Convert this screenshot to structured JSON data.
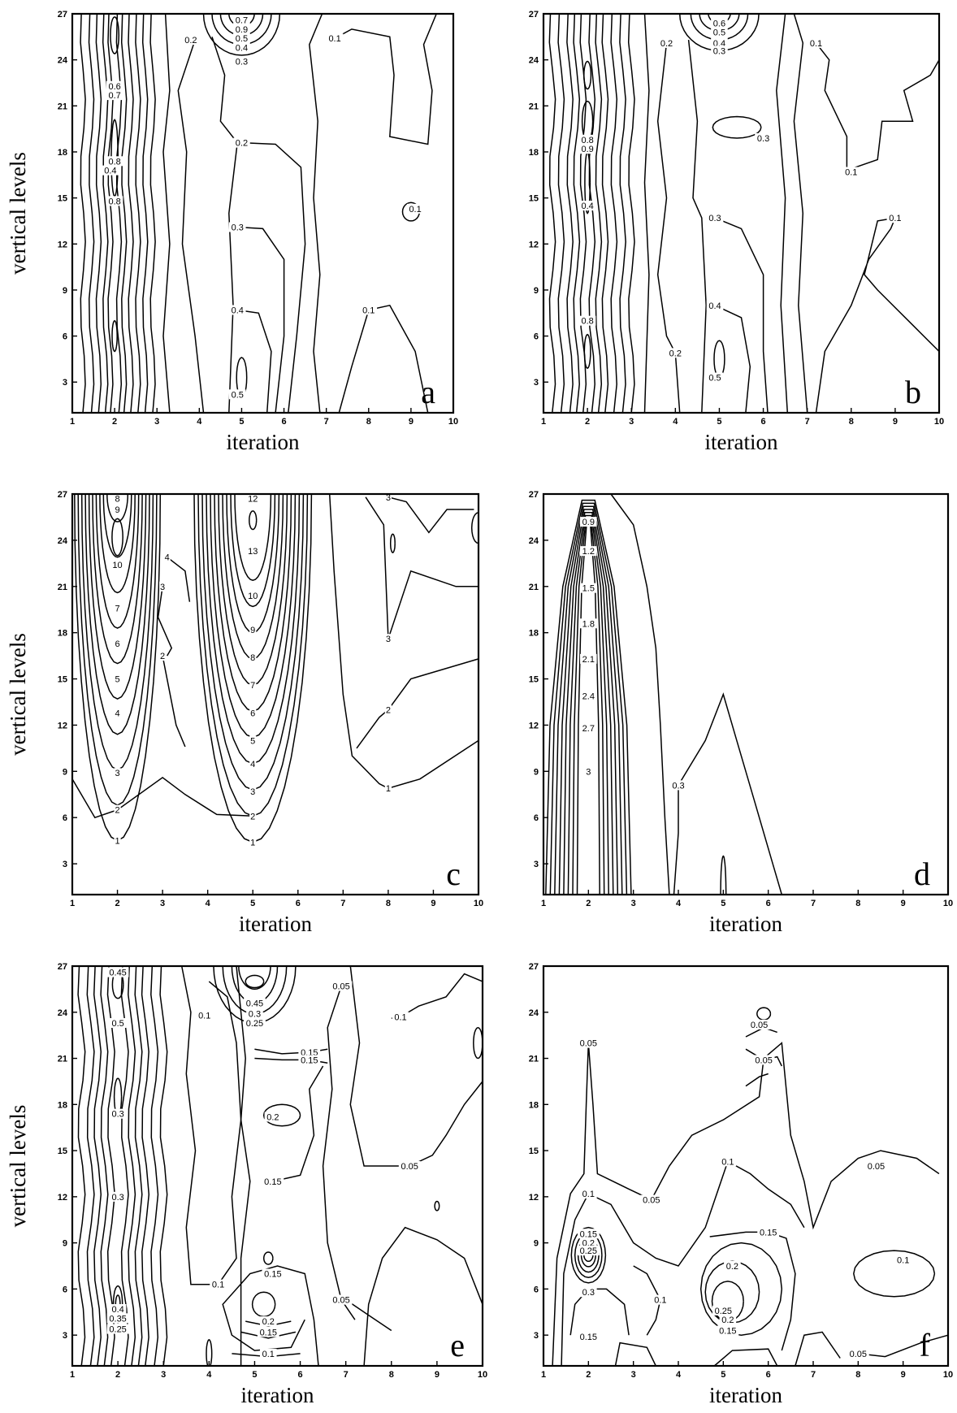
{
  "chart_data": [
    {
      "type": "contour",
      "panel_label": "a",
      "xlabel": "iteration",
      "ylabel": "vertical levels",
      "xlim": [
        1,
        10
      ],
      "ylim": [
        1,
        27
      ],
      "xticks": [
        1,
        2,
        3,
        4,
        5,
        6,
        7,
        8,
        9,
        10
      ],
      "yticks": [
        3,
        6,
        9,
        12,
        15,
        18,
        21,
        24,
        27
      ],
      "contour_labels": [
        {
          "x": 2.0,
          "y": 22.3,
          "text": "0.6"
        },
        {
          "x": 2.0,
          "y": 21.7,
          "text": "0.7"
        },
        {
          "x": 2.0,
          "y": 17.4,
          "text": "0.8"
        },
        {
          "x": 1.9,
          "y": 16.8,
          "text": "0.4"
        },
        {
          "x": 2.0,
          "y": 14.8,
          "text": "0.8"
        },
        {
          "x": 3.8,
          "y": 25.3,
          "text": "0.2"
        },
        {
          "x": 5.0,
          "y": 26.6,
          "text": "0.7"
        },
        {
          "x": 5.0,
          "y": 26.0,
          "text": "0.9"
        },
        {
          "x": 5.0,
          "y": 25.4,
          "text": "0.5"
        },
        {
          "x": 5.0,
          "y": 24.8,
          "text": "0.4"
        },
        {
          "x": 5.0,
          "y": 23.9,
          "text": "0.3"
        },
        {
          "x": 7.2,
          "y": 25.4,
          "text": "0.1"
        },
        {
          "x": 5.0,
          "y": 18.6,
          "text": "0.2"
        },
        {
          "x": 4.9,
          "y": 13.1,
          "text": "0.3"
        },
        {
          "x": 9.1,
          "y": 14.3,
          "text": "0.1"
        },
        {
          "x": 4.9,
          "y": 7.7,
          "text": "0.4"
        },
        {
          "x": 8.0,
          "y": 7.7,
          "text": "0.1"
        },
        {
          "x": 4.9,
          "y": 2.2,
          "text": "0.5"
        }
      ]
    },
    {
      "type": "contour",
      "panel_label": "b",
      "xlabel": "iteration",
      "ylabel": "",
      "xlim": [
        1,
        10
      ],
      "ylim": [
        1,
        27
      ],
      "xticks": [
        1,
        2,
        3,
        4,
        5,
        6,
        7,
        8,
        9,
        10
      ],
      "yticks": [
        3,
        6,
        9,
        12,
        15,
        18,
        21,
        24,
        27
      ],
      "contour_labels": [
        {
          "x": 2.0,
          "y": 18.8,
          "text": "0.8"
        },
        {
          "x": 2.0,
          "y": 18.2,
          "text": "0.9"
        },
        {
          "x": 2.0,
          "y": 14.5,
          "text": "0.4"
        },
        {
          "x": 2.0,
          "y": 7.0,
          "text": "0.8"
        },
        {
          "x": 3.8,
          "y": 25.1,
          "text": "0.2"
        },
        {
          "x": 5.0,
          "y": 26.4,
          "text": "0.6"
        },
        {
          "x": 5.0,
          "y": 25.8,
          "text": "0.5"
        },
        {
          "x": 5.0,
          "y": 25.1,
          "text": "0.4"
        },
        {
          "x": 5.0,
          "y": 24.6,
          "text": "0.3"
        },
        {
          "x": 7.2,
          "y": 25.1,
          "text": "0.1"
        },
        {
          "x": 6.0,
          "y": 18.9,
          "text": "0.3"
        },
        {
          "x": 8.0,
          "y": 16.7,
          "text": "0.1"
        },
        {
          "x": 4.9,
          "y": 13.7,
          "text": "0.3"
        },
        {
          "x": 9.0,
          "y": 13.7,
          "text": "0.1"
        },
        {
          "x": 4.9,
          "y": 8.0,
          "text": "0.4"
        },
        {
          "x": 4.0,
          "y": 4.9,
          "text": "0.2"
        },
        {
          "x": 4.9,
          "y": 3.3,
          "text": "0.5"
        }
      ]
    },
    {
      "type": "contour",
      "panel_label": "c",
      "xlabel": "iteration",
      "ylabel": "vertical levels",
      "xlim": [
        1,
        10
      ],
      "ylim": [
        1,
        27
      ],
      "xticks": [
        1,
        2,
        3,
        4,
        5,
        6,
        7,
        8,
        9,
        10
      ],
      "yticks": [
        3,
        6,
        9,
        12,
        15,
        18,
        21,
        24,
        27
      ],
      "contour_labels": [
        {
          "x": 2.0,
          "y": 26.7,
          "text": "8"
        },
        {
          "x": 2.0,
          "y": 26.0,
          "text": "9"
        },
        {
          "x": 2.0,
          "y": 22.4,
          "text": "10"
        },
        {
          "x": 2.0,
          "y": 19.6,
          "text": "7"
        },
        {
          "x": 2.0,
          "y": 17.3,
          "text": "6"
        },
        {
          "x": 2.0,
          "y": 15.0,
          "text": "5"
        },
        {
          "x": 2.0,
          "y": 12.8,
          "text": "4"
        },
        {
          "x": 2.0,
          "y": 8.9,
          "text": "3"
        },
        {
          "x": 2.0,
          "y": 6.5,
          "text": "2"
        },
        {
          "x": 2.0,
          "y": 4.5,
          "text": "1"
        },
        {
          "x": 3.1,
          "y": 22.9,
          "text": "4"
        },
        {
          "x": 3.0,
          "y": 21.0,
          "text": "3"
        },
        {
          "x": 3.0,
          "y": 16.5,
          "text": "2"
        },
        {
          "x": 5.0,
          "y": 26.7,
          "text": "12"
        },
        {
          "x": 5.0,
          "y": 23.3,
          "text": "13"
        },
        {
          "x": 5.0,
          "y": 20.4,
          "text": "10"
        },
        {
          "x": 5.0,
          "y": 18.2,
          "text": "9"
        },
        {
          "x": 5.0,
          "y": 16.4,
          "text": "8"
        },
        {
          "x": 5.0,
          "y": 14.6,
          "text": "7"
        },
        {
          "x": 5.0,
          "y": 12.8,
          "text": "6"
        },
        {
          "x": 5.0,
          "y": 11.0,
          "text": "5"
        },
        {
          "x": 5.0,
          "y": 9.5,
          "text": "4"
        },
        {
          "x": 5.0,
          "y": 7.7,
          "text": "3"
        },
        {
          "x": 5.0,
          "y": 6.1,
          "text": "2"
        },
        {
          "x": 5.0,
          "y": 4.4,
          "text": "1"
        },
        {
          "x": 8.0,
          "y": 26.8,
          "text": "3"
        },
        {
          "x": 8.0,
          "y": 17.6,
          "text": "3"
        },
        {
          "x": 8.0,
          "y": 13.0,
          "text": "2"
        },
        {
          "x": 8.0,
          "y": 7.9,
          "text": "1"
        }
      ]
    },
    {
      "type": "contour",
      "panel_label": "d",
      "xlabel": "iteration",
      "ylabel": "",
      "xlim": [
        1,
        10
      ],
      "ylim": [
        1,
        27
      ],
      "xticks": [
        1,
        2,
        3,
        4,
        5,
        6,
        7,
        8,
        9,
        10
      ],
      "yticks": [
        3,
        6,
        9,
        12,
        15,
        18,
        21,
        24,
        27
      ],
      "contour_labels": [
        {
          "x": 2.0,
          "y": 25.2,
          "text": "0.9"
        },
        {
          "x": 2.0,
          "y": 23.3,
          "text": "1.2"
        },
        {
          "x": 2.0,
          "y": 20.9,
          "text": "1.5"
        },
        {
          "x": 2.0,
          "y": 18.6,
          "text": "1.8"
        },
        {
          "x": 2.0,
          "y": 16.3,
          "text": "2.1"
        },
        {
          "x": 2.0,
          "y": 13.9,
          "text": "2.4"
        },
        {
          "x": 2.0,
          "y": 11.8,
          "text": "2.7"
        },
        {
          "x": 2.0,
          "y": 9.0,
          "text": "3"
        },
        {
          "x": 4.0,
          "y": 8.1,
          "text": "0.3"
        }
      ]
    },
    {
      "type": "contour",
      "panel_label": "e",
      "xlabel": "iteration",
      "ylabel": "vertical levels",
      "xlim": [
        1,
        10
      ],
      "ylim": [
        1,
        27
      ],
      "xticks": [
        1,
        2,
        3,
        4,
        5,
        6,
        7,
        8,
        9,
        10
      ],
      "yticks": [
        3,
        6,
        9,
        12,
        15,
        18,
        21,
        24,
        27
      ],
      "contour_labels": [
        {
          "x": 2.0,
          "y": 26.6,
          "text": "0.45"
        },
        {
          "x": 2.0,
          "y": 23.3,
          "text": "0.5"
        },
        {
          "x": 2.0,
          "y": 17.4,
          "text": "0.3"
        },
        {
          "x": 2.0,
          "y": 12.0,
          "text": "0.3"
        },
        {
          "x": 2.0,
          "y": 4.7,
          "text": "0.4"
        },
        {
          "x": 2.0,
          "y": 4.1,
          "text": "0.35"
        },
        {
          "x": 2.0,
          "y": 3.4,
          "text": "0.25"
        },
        {
          "x": 3.9,
          "y": 23.8,
          "text": "0.1"
        },
        {
          "x": 5.0,
          "y": 24.6,
          "text": "0.45"
        },
        {
          "x": 5.0,
          "y": 23.9,
          "text": "0.3"
        },
        {
          "x": 5.0,
          "y": 23.3,
          "text": "0.25"
        },
        {
          "x": 6.9,
          "y": 25.7,
          "text": "0.05"
        },
        {
          "x": 6.2,
          "y": 21.4,
          "text": "0.15"
        },
        {
          "x": 6.2,
          "y": 20.9,
          "text": "0.15"
        },
        {
          "x": 5.4,
          "y": 17.2,
          "text": "0.2"
        },
        {
          "x": 5.4,
          "y": 13.0,
          "text": "0.15"
        },
        {
          "x": 8.2,
          "y": 23.7,
          "text": "0.1"
        },
        {
          "x": 8.4,
          "y": 14.0,
          "text": "0.05"
        },
        {
          "x": 4.2,
          "y": 6.3,
          "text": "0.1"
        },
        {
          "x": 5.4,
          "y": 7.0,
          "text": "0.15"
        },
        {
          "x": 6.9,
          "y": 5.3,
          "text": "0.05"
        },
        {
          "x": 5.3,
          "y": 3.9,
          "text": "0.2"
        },
        {
          "x": 5.3,
          "y": 3.2,
          "text": "0.15"
        },
        {
          "x": 5.3,
          "y": 1.8,
          "text": "0.1"
        }
      ]
    },
    {
      "type": "contour",
      "panel_label": "f",
      "xlabel": "iteration",
      "ylabel": "",
      "xlim": [
        1,
        10
      ],
      "ylim": [
        1,
        27
      ],
      "xticks": [
        1,
        2,
        3,
        4,
        5,
        6,
        7,
        8,
        9,
        10
      ],
      "yticks": [
        3,
        6,
        9,
        12,
        15,
        18,
        21,
        24,
        27
      ],
      "contour_labels": [
        {
          "x": 2.0,
          "y": 22.0,
          "text": "0.05"
        },
        {
          "x": 5.8,
          "y": 23.2,
          "text": "0.05"
        },
        {
          "x": 5.9,
          "y": 20.9,
          "text": "0.05"
        },
        {
          "x": 2.0,
          "y": 12.2,
          "text": "0.1"
        },
        {
          "x": 2.0,
          "y": 9.6,
          "text": "0.15"
        },
        {
          "x": 2.0,
          "y": 9.0,
          "text": "0.2"
        },
        {
          "x": 2.0,
          "y": 8.5,
          "text": "0.25"
        },
        {
          "x": 2.0,
          "y": 5.8,
          "text": "0.3"
        },
        {
          "x": 3.4,
          "y": 11.8,
          "text": "0.05"
        },
        {
          "x": 5.1,
          "y": 14.3,
          "text": "0.1"
        },
        {
          "x": 6.0,
          "y": 9.7,
          "text": "0.15"
        },
        {
          "x": 5.2,
          "y": 7.5,
          "text": "0.2"
        },
        {
          "x": 3.6,
          "y": 5.3,
          "text": "0.1"
        },
        {
          "x": 5.0,
          "y": 4.6,
          "text": "0.25"
        },
        {
          "x": 5.1,
          "y": 4.0,
          "text": "0.2"
        },
        {
          "x": 5.1,
          "y": 3.3,
          "text": "0.15"
        },
        {
          "x": 2.0,
          "y": 2.9,
          "text": "0.15"
        },
        {
          "x": 8.4,
          "y": 14.0,
          "text": "0.05"
        },
        {
          "x": 9.0,
          "y": 7.9,
          "text": "0.1"
        },
        {
          "x": 8.0,
          "y": 1.8,
          "text": "0.05"
        }
      ]
    }
  ]
}
